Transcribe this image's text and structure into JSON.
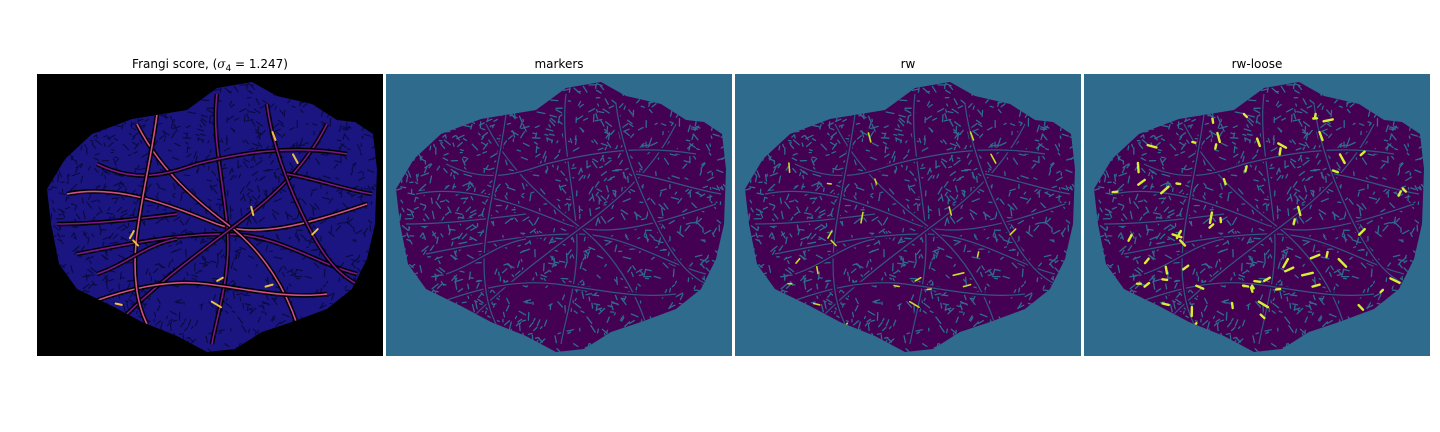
{
  "figure": {
    "panels": [
      {
        "id": "frangi",
        "title_prefix": "Frangi score, (",
        "title_symbol": "σ",
        "title_subscript": "4",
        "title_rest": " = 1.247)",
        "colormap": "plasma",
        "colors": {
          "background": "#000000",
          "tissue": "#1a1580",
          "tissue_dark": "#0a0a40",
          "vessel": "#8a1a9a",
          "vessel_bright": "#e8589a",
          "highlight": "#f0c040"
        }
      },
      {
        "id": "markers",
        "title": "markers",
        "colormap": "viridis",
        "colors": {
          "background": "#2f6b8c",
          "tissue": "#440154",
          "mesh": "#2f6b8c"
        }
      },
      {
        "id": "rw",
        "title": "rw",
        "colormap": "viridis",
        "colors": {
          "background": "#2f6b8c",
          "tissue": "#440154",
          "mesh": "#2f6b8c",
          "label": "#c8e020"
        }
      },
      {
        "id": "rw-loose",
        "title": "rw-loose",
        "colormap": "viridis",
        "colors": {
          "background": "#2f6b8c",
          "tissue": "#440154",
          "mesh": "#2f6b8c",
          "label": "#d8f030"
        }
      }
    ]
  }
}
